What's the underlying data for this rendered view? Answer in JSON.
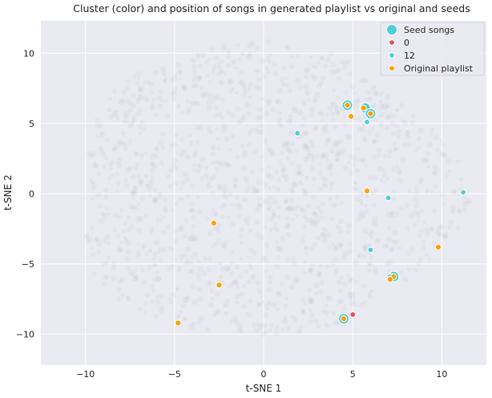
{
  "chart_data": {
    "type": "scatter",
    "title": "Cluster (color) and position of songs in generated playlist vs original and seeds",
    "xlabel": "t-SNE 1",
    "ylabel": "t-SNE 2",
    "xlim": [
      -12.5,
      12.5
    ],
    "ylim": [
      -12.2,
      12.3
    ],
    "xticks": [
      -10,
      -5,
      0,
      5,
      10
    ],
    "yticks": [
      -10,
      -5,
      0,
      5,
      10
    ],
    "xtick_labels": [
      "−10",
      "−5",
      "0",
      "5",
      "10"
    ],
    "ytick_labels": [
      "−10",
      "−5",
      "0",
      "5",
      "10"
    ],
    "grid": true,
    "background": "#eaeaf2",
    "legend_position": "top-right",
    "legend": [
      {
        "label": "Seed songs",
        "color": "#4ecfd6",
        "marker": "large-circle"
      },
      {
        "label": "0",
        "color": "#e0525d",
        "marker": "circle"
      },
      {
        "label": "12",
        "color": "#4ecfd6",
        "marker": "circle"
      },
      {
        "label": "Original playlist",
        "color": "#ff9f00",
        "marker": "circle"
      }
    ],
    "background_cloud": {
      "color": "#a8a8b0",
      "description": "all songs (faint)"
    },
    "series": [
      {
        "name": "Seed songs",
        "color": "#4ecfd6",
        "points": [
          {
            "x": 4.7,
            "y": 6.3
          },
          {
            "x": 5.7,
            "y": 6.1
          },
          {
            "x": 6.0,
            "y": 5.7
          },
          {
            "x": 7.3,
            "y": -5.9
          },
          {
            "x": 4.5,
            "y": -8.9
          }
        ]
      },
      {
        "name": "0",
        "color": "#e0525d",
        "points": [
          {
            "x": 4.5,
            "y": -8.9
          },
          {
            "x": 5.0,
            "y": -8.6
          }
        ]
      },
      {
        "name": "12",
        "color": "#4ecfd6",
        "points": [
          {
            "x": 1.9,
            "y": 4.3
          },
          {
            "x": 5.8,
            "y": 5.1
          },
          {
            "x": 7.0,
            "y": -0.3
          },
          {
            "x": 11.2,
            "y": 0.1
          },
          {
            "x": 6.0,
            "y": -4.0
          },
          {
            "x": 7.1,
            "y": -5.9
          }
        ]
      },
      {
        "name": "Original playlist",
        "color": "#ff9f00",
        "points": [
          {
            "x": 4.7,
            "y": 6.3
          },
          {
            "x": 5.6,
            "y": 6.1
          },
          {
            "x": 6.0,
            "y": 5.7
          },
          {
            "x": 4.9,
            "y": 5.5
          },
          {
            "x": 5.8,
            "y": 0.2
          },
          {
            "x": -2.8,
            "y": -2.1
          },
          {
            "x": 9.8,
            "y": -3.8
          },
          {
            "x": 7.3,
            "y": -5.9
          },
          {
            "x": 7.1,
            "y": -6.1
          },
          {
            "x": -2.5,
            "y": -6.5
          },
          {
            "x": -4.8,
            "y": -9.2
          },
          {
            "x": 4.5,
            "y": -8.9
          }
        ]
      }
    ]
  }
}
